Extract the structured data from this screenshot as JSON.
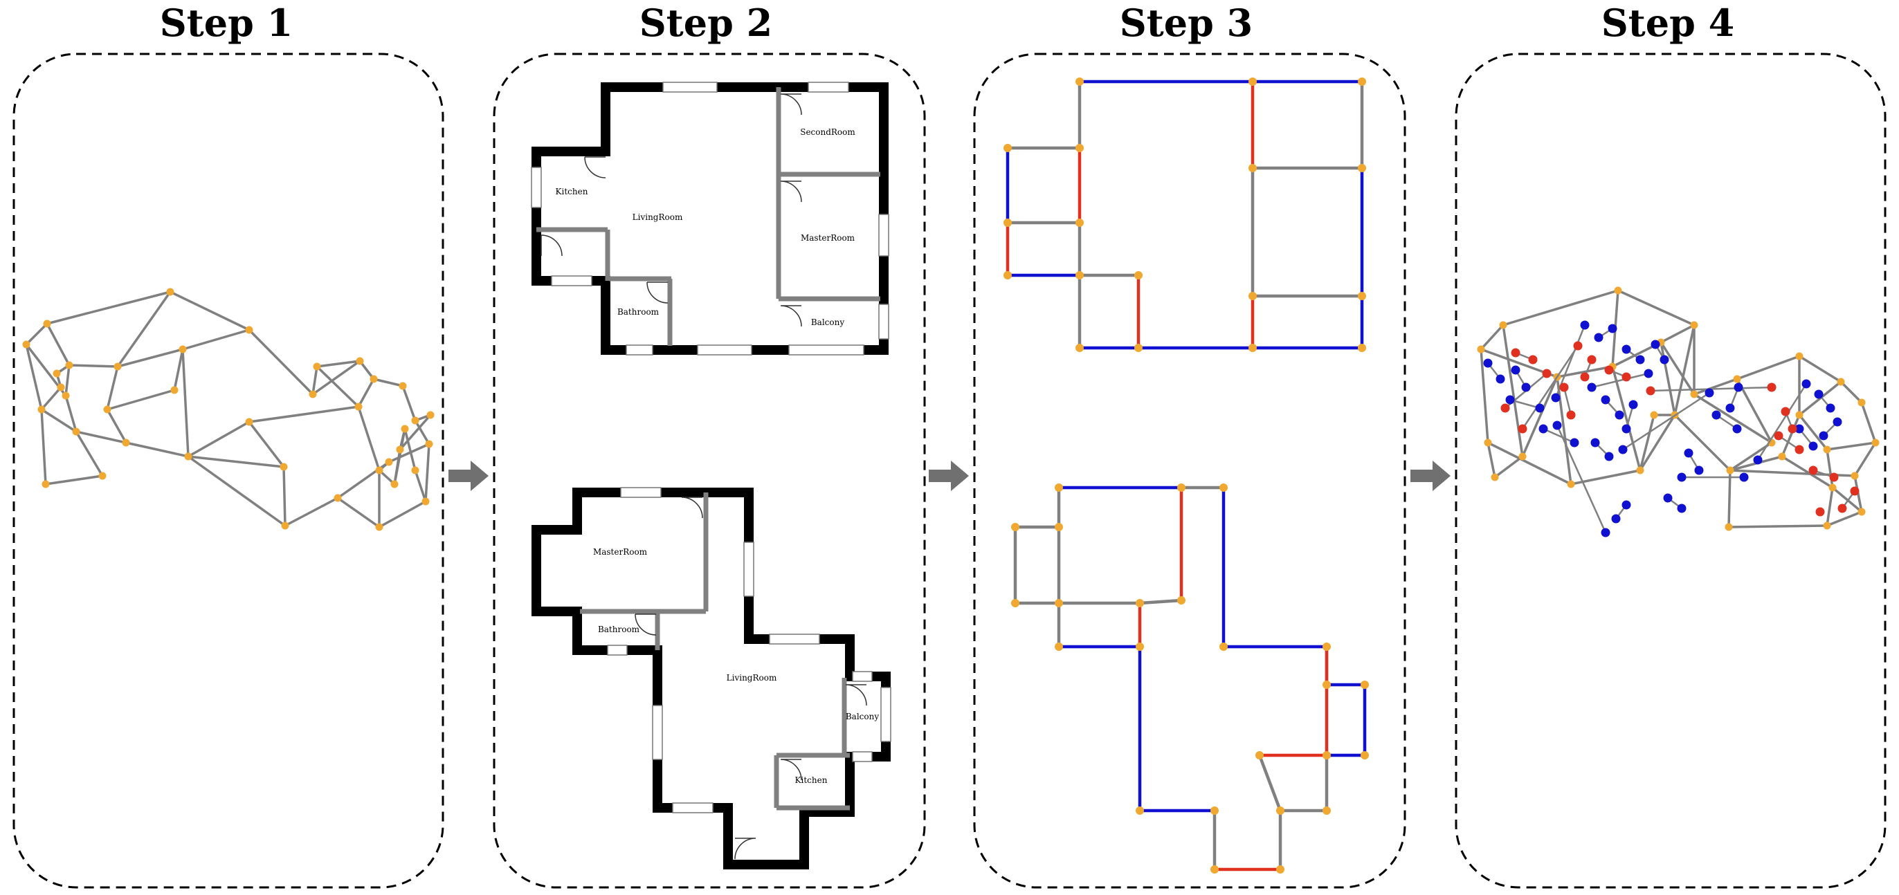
{
  "colors": {
    "node": "#f0a830",
    "edge": "#808080",
    "wall": "#000000",
    "inner_wall": "#808080",
    "door_edge": "#e03020",
    "window_edge": "#1010d0",
    "arrow": "#707070"
  },
  "steps": [
    {
      "title": "Step 1"
    },
    {
      "title": "Step 2"
    },
    {
      "title": "Step 3"
    },
    {
      "title": "Step 4"
    }
  ],
  "floorplans": [
    {
      "rooms": [
        {
          "label": "SecondRoom"
        },
        {
          "label": "Kitchen"
        },
        {
          "label": "LivingRoom"
        },
        {
          "label": "MasterRoom"
        },
        {
          "label": "Bathroom"
        },
        {
          "label": "Balcony"
        }
      ]
    },
    {
      "rooms": [
        {
          "label": "MasterRoom"
        },
        {
          "label": "Bathroom"
        },
        {
          "label": "LivingRoom"
        },
        {
          "label": "Balcony"
        },
        {
          "label": "Kitchen"
        }
      ]
    }
  ]
}
